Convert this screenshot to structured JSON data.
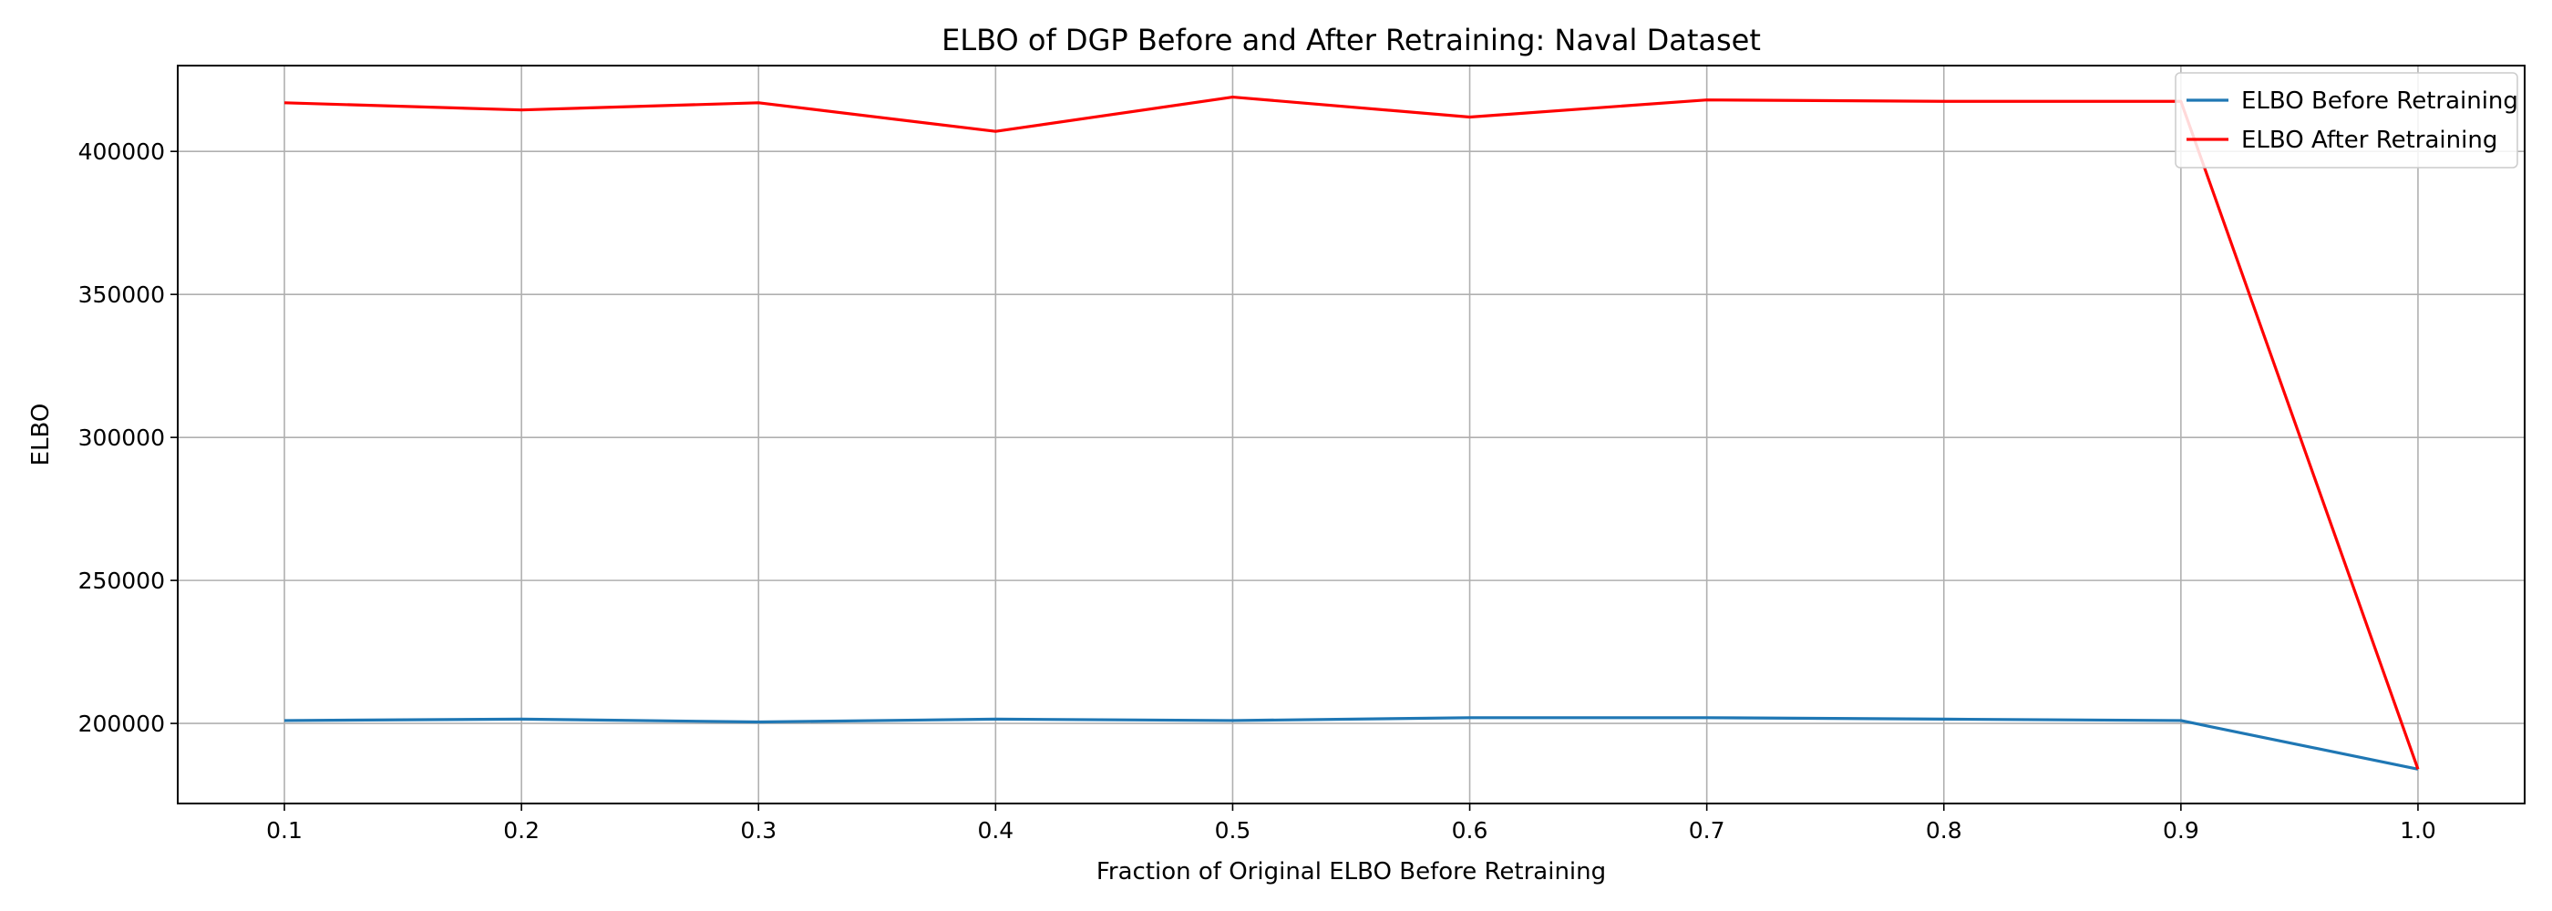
{
  "chart_data": {
    "type": "line",
    "title": "ELBO of DGP Before and After Retraining: Naval Dataset",
    "xlabel": "Fraction of Original ELBO Before Retraining",
    "ylabel": "ELBO",
    "x": [
      0.1,
      0.2,
      0.3,
      0.4,
      0.5,
      0.6,
      0.7,
      0.8,
      0.9,
      1.0
    ],
    "x_ticks": [
      "0.1",
      "0.2",
      "0.3",
      "0.4",
      "0.5",
      "0.6",
      "0.7",
      "0.8",
      "0.9",
      "1.0"
    ],
    "xlim": [
      0.055,
      1.045
    ],
    "y_ticks": [
      200000,
      250000,
      300000,
      350000,
      400000
    ],
    "ylim": [
      172000,
      430000
    ],
    "grid": true,
    "legend_position": "top-right",
    "series": [
      {
        "name": "ELBO Before Retraining",
        "color": "#1f77b4",
        "values": [
          201000,
          201500,
          200500,
          201500,
          201000,
          202000,
          202000,
          201500,
          201000,
          184000
        ]
      },
      {
        "name": "ELBO After Retraining",
        "color": "#ff0000",
        "values": [
          417000,
          414500,
          417000,
          407000,
          419000,
          412000,
          418000,
          417500,
          417500,
          184000
        ]
      }
    ]
  }
}
